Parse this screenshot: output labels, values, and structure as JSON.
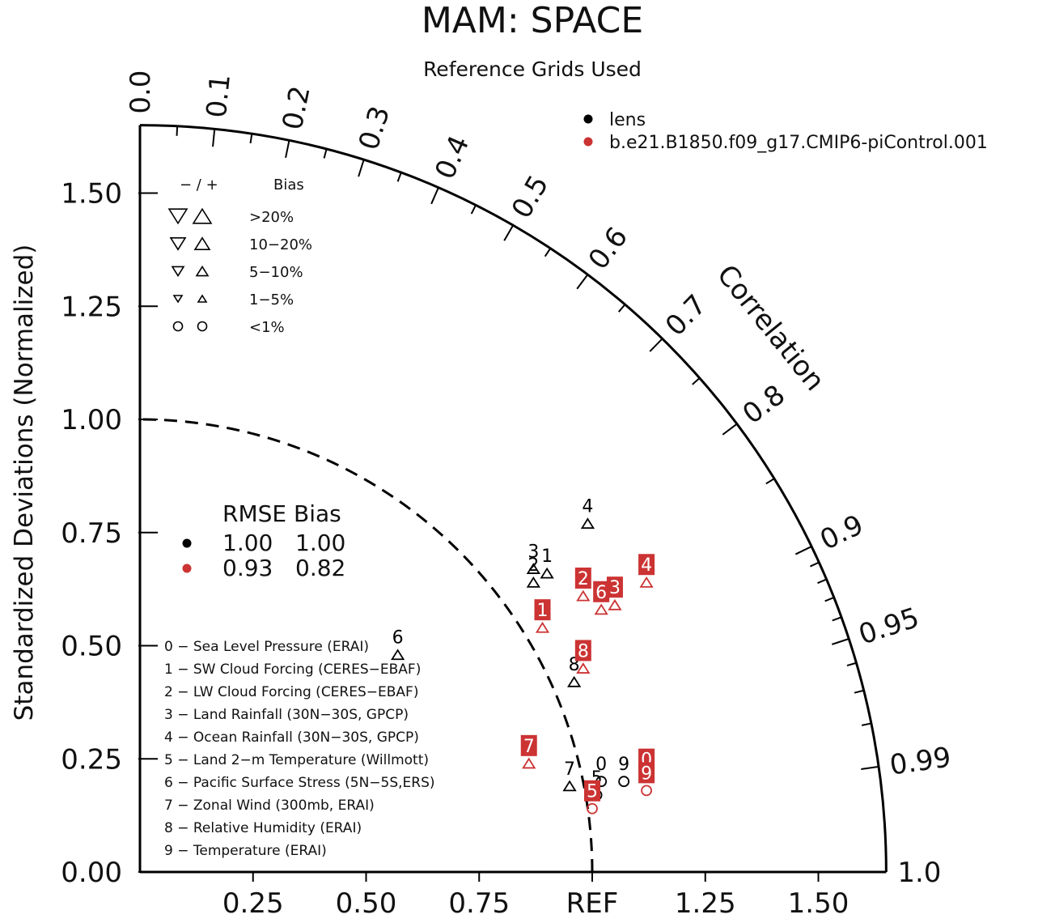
{
  "chart_data": {
    "type": "scatter",
    "title": "MAM: SPACE",
    "subtitle": "Reference Grids Used",
    "ylabel": "Standardized Deviations (Normalized)",
    "correlation_label": "Correlation",
    "ref_label": "REF",
    "radial_max": 1.65,
    "x_ticks": [
      "0.25",
      "0.50",
      "0.75",
      "REF",
      "1.25",
      "1.50"
    ],
    "y_ticks": [
      "0.00",
      "0.25",
      "0.50",
      "0.75",
      "1.00",
      "1.25",
      "1.50"
    ],
    "correlation_ticks": [
      "0.0",
      "0.1",
      "0.2",
      "0.3",
      "0.4",
      "0.5",
      "0.6",
      "0.7",
      "0.8",
      "0.9",
      "0.95",
      "0.99",
      "1.0"
    ],
    "series": [
      {
        "name": "lens",
        "color": "#000000",
        "points": [
          {
            "id": "0",
            "x": 1.02,
            "y": 0.2,
            "marker": "circle"
          },
          {
            "id": "1",
            "x": 0.9,
            "y": 0.66,
            "marker": "triangle-up"
          },
          {
            "id": "2",
            "x": 0.87,
            "y": 0.64,
            "marker": "triangle-up"
          },
          {
            "id": "3",
            "x": 0.87,
            "y": 0.67,
            "marker": "triangle-up"
          },
          {
            "id": "4",
            "x": 0.99,
            "y": 0.77,
            "marker": "triangle-up"
          },
          {
            "id": "5",
            "x": 1.01,
            "y": 0.17,
            "marker": "circle"
          },
          {
            "id": "6",
            "x": 0.57,
            "y": 0.48,
            "marker": "triangle-up"
          },
          {
            "id": "7",
            "x": 0.95,
            "y": 0.19,
            "marker": "triangle-up"
          },
          {
            "id": "8",
            "x": 0.96,
            "y": 0.42,
            "marker": "triangle-up"
          },
          {
            "id": "9",
            "x": 1.07,
            "y": 0.2,
            "marker": "circle"
          }
        ]
      },
      {
        "name": "b.e21.B1850.f09_g17.CMIP6-piControl.001",
        "color": "#cc3333",
        "points": [
          {
            "id": "0",
            "x": 1.12,
            "y": 0.21,
            "marker": "circle"
          },
          {
            "id": "1",
            "x": 0.89,
            "y": 0.54,
            "marker": "triangle-up"
          },
          {
            "id": "2",
            "x": 0.98,
            "y": 0.61,
            "marker": "triangle-up"
          },
          {
            "id": "3",
            "x": 1.05,
            "y": 0.59,
            "marker": "triangle-up"
          },
          {
            "id": "4",
            "x": 1.12,
            "y": 0.64,
            "marker": "triangle-up"
          },
          {
            "id": "5",
            "x": 1.0,
            "y": 0.14,
            "marker": "circle"
          },
          {
            "id": "6",
            "x": 1.02,
            "y": 0.58,
            "marker": "triangle-up"
          },
          {
            "id": "7",
            "x": 0.86,
            "y": 0.24,
            "marker": "triangle-up"
          },
          {
            "id": "8",
            "x": 0.98,
            "y": 0.45,
            "marker": "triangle-up"
          },
          {
            "id": "9",
            "x": 1.12,
            "y": 0.18,
            "marker": "circle"
          }
        ]
      }
    ],
    "legend": {
      "position": "top-right",
      "entries": [
        {
          "label": "lens",
          "color": "#000000"
        },
        {
          "label": "b.e21.B1850.f09_g17.CMIP6-piControl.001",
          "color": "#cc3333"
        }
      ]
    },
    "bias_legend": {
      "header_signs": "− / +",
      "header_label": "Bias",
      "rows": [
        ">20%",
        "10−20%",
        "5−10%",
        "1−5%",
        "<1%"
      ]
    },
    "rmse_table": {
      "header": "RMSE Bias",
      "rows": [
        {
          "color": "#000000",
          "rmse": "1.00",
          "bias": "1.00"
        },
        {
          "color": "#cc3333",
          "rmse": "0.93",
          "bias": "0.82"
        }
      ]
    },
    "variables": [
      "0 − Sea Level Pressure (ERAI)",
      "1 − SW Cloud Forcing (CERES−EBAF)",
      "2 − LW Cloud Forcing (CERES−EBAF)",
      "3 − Land Rainfall (30N−30S, GPCP)",
      "4 − Ocean Rainfall (30N−30S, GPCP)",
      "5 − Land 2−m Temperature (Willmott)",
      "6 − Pacific Surface Stress (5N−5S,ERS)",
      "7 − Zonal Wind (300mb, ERAI)",
      "8 − Relative Humidity (ERAI)",
      "9 − Temperature (ERAI)"
    ]
  }
}
